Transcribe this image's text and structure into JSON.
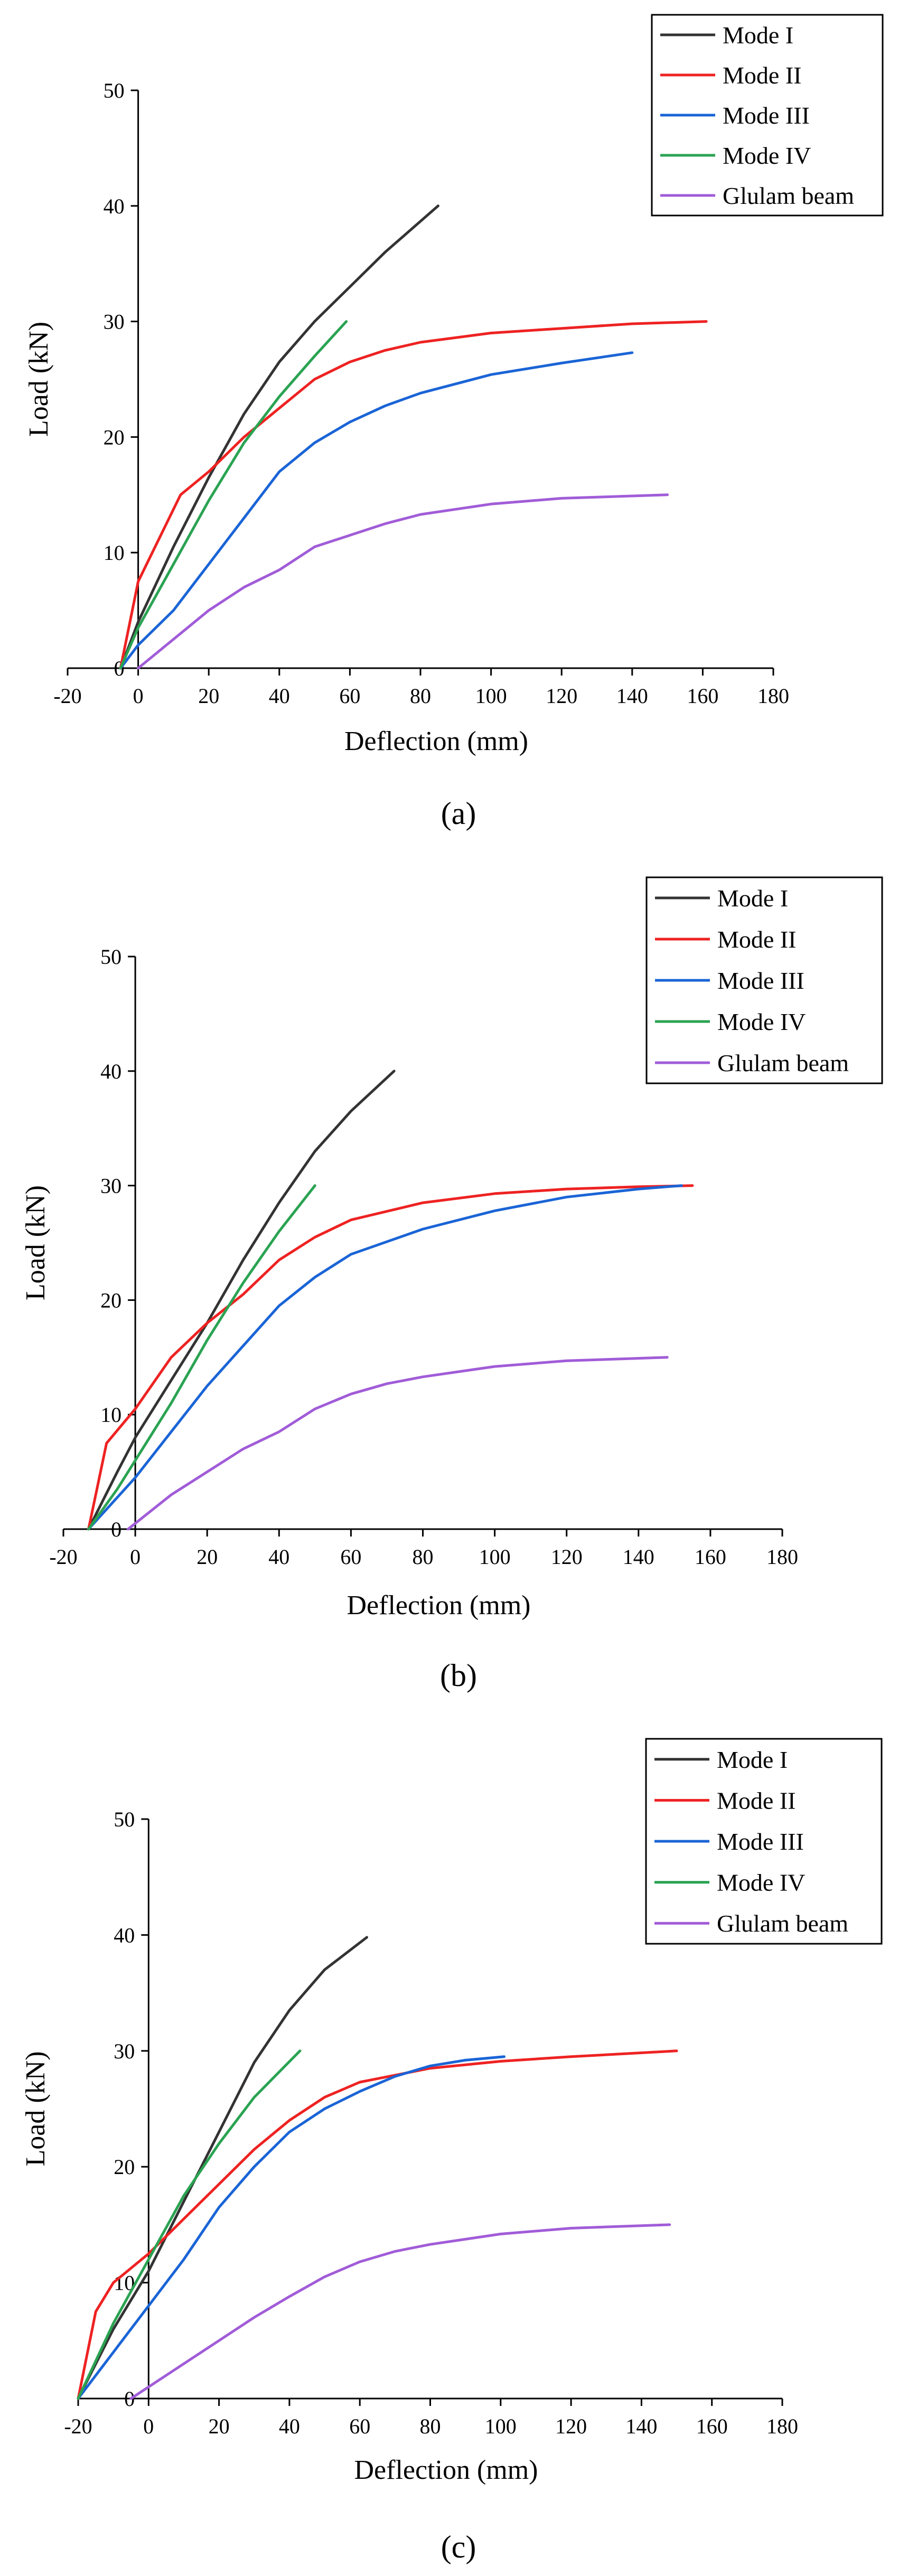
{
  "chart_data": [
    {
      "panel": "a",
      "type": "line",
      "caption": "(a)",
      "xlabel": "Deflection (mm)",
      "ylabel": "Load (kN)",
      "xlim": [
        -20,
        180
      ],
      "ylim": [
        0,
        50
      ],
      "xticks": [
        -20,
        0,
        20,
        40,
        60,
        80,
        100,
        120,
        140,
        160,
        180
      ],
      "yticks": [
        0,
        10,
        20,
        30,
        40,
        50
      ],
      "legend": "top-right",
      "series": [
        {
          "name": "Mode I",
          "color": "#333333",
          "points": [
            [
              -5,
              0
            ],
            [
              0,
              4
            ],
            [
              10,
              10.5
            ],
            [
              20,
              16.5
            ],
            [
              30,
              22
            ],
            [
              40,
              26.5
            ],
            [
              50,
              30
            ],
            [
              60,
              33
            ],
            [
              70,
              36
            ],
            [
              85,
              40
            ]
          ]
        },
        {
          "name": "Mode II",
          "color": "#ee2222",
          "points": [
            [
              -5,
              0
            ],
            [
              0,
              7.5
            ],
            [
              12,
              15
            ],
            [
              20,
              17
            ],
            [
              30,
              20
            ],
            [
              40,
              22.5
            ],
            [
              50,
              25
            ],
            [
              60,
              26.5
            ],
            [
              70,
              27.5
            ],
            [
              80,
              28.2
            ],
            [
              100,
              29
            ],
            [
              120,
              29.4
            ],
            [
              140,
              29.8
            ],
            [
              161,
              30
            ]
          ]
        },
        {
          "name": "Mode III",
          "color": "#1a64d6",
          "points": [
            [
              -5,
              0
            ],
            [
              0,
              2
            ],
            [
              10,
              5
            ],
            [
              20,
              9
            ],
            [
              30,
              13
            ],
            [
              40,
              17
            ],
            [
              50,
              19.5
            ],
            [
              60,
              21.3
            ],
            [
              70,
              22.7
            ],
            [
              80,
              23.8
            ],
            [
              100,
              25.4
            ],
            [
              120,
              26.4
            ],
            [
              140,
              27.3
            ]
          ]
        },
        {
          "name": "Mode IV",
          "color": "#2aa352",
          "points": [
            [
              -5,
              0
            ],
            [
              0,
              3.5
            ],
            [
              10,
              9
            ],
            [
              20,
              14.5
            ],
            [
              30,
              19.5
            ],
            [
              40,
              23.5
            ],
            [
              50,
              27
            ],
            [
              59,
              30
            ]
          ]
        },
        {
          "name": "Glulam beam",
          "color": "#a15cd8",
          "points": [
            [
              0,
              0
            ],
            [
              10,
              2.5
            ],
            [
              20,
              5
            ],
            [
              30,
              7
            ],
            [
              40,
              8.5
            ],
            [
              50,
              10.5
            ],
            [
              60,
              11.5
            ],
            [
              70,
              12.5
            ],
            [
              80,
              13.3
            ],
            [
              100,
              14.2
            ],
            [
              120,
              14.7
            ],
            [
              150,
              15
            ]
          ]
        }
      ]
    },
    {
      "panel": "b",
      "type": "line",
      "caption": "(b)",
      "xlabel": "Deflection (mm)",
      "ylabel": "Load (kN)",
      "xlim": [
        -20,
        180
      ],
      "ylim": [
        0,
        50
      ],
      "xticks": [
        -20,
        0,
        20,
        40,
        60,
        80,
        100,
        120,
        140,
        160,
        180
      ],
      "yticks": [
        0,
        10,
        20,
        30,
        40,
        50
      ],
      "legend": "top-right",
      "series": [
        {
          "name": "Mode I",
          "color": "#333333",
          "points": [
            [
              -13,
              0
            ],
            [
              -5,
              5
            ],
            [
              0,
              8
            ],
            [
              10,
              13
            ],
            [
              20,
              18
            ],
            [
              30,
              23.5
            ],
            [
              40,
              28.5
            ],
            [
              50,
              33
            ],
            [
              60,
              36.5
            ],
            [
              72,
              40
            ]
          ]
        },
        {
          "name": "Mode II",
          "color": "#ee2222",
          "points": [
            [
              -13,
              0
            ],
            [
              -8,
              7.5
            ],
            [
              0,
              10.5
            ],
            [
              10,
              15
            ],
            [
              20,
              18
            ],
            [
              30,
              20.5
            ],
            [
              40,
              23.5
            ],
            [
              50,
              25.5
            ],
            [
              60,
              27
            ],
            [
              80,
              28.5
            ],
            [
              100,
              29.3
            ],
            [
              120,
              29.7
            ],
            [
              140,
              29.9
            ],
            [
              155,
              30
            ]
          ]
        },
        {
          "name": "Mode III",
          "color": "#1a64d6",
          "points": [
            [
              -13,
              0
            ],
            [
              0,
              4.5
            ],
            [
              10,
              8.5
            ],
            [
              20,
              12.5
            ],
            [
              30,
              16
            ],
            [
              40,
              19.5
            ],
            [
              50,
              22
            ],
            [
              60,
              24
            ],
            [
              80,
              26.2
            ],
            [
              100,
              27.8
            ],
            [
              120,
              29
            ],
            [
              140,
              29.7
            ],
            [
              152,
              30
            ]
          ]
        },
        {
          "name": "Mode IV",
          "color": "#2aa352",
          "points": [
            [
              -13,
              0
            ],
            [
              -5,
              3.5
            ],
            [
              0,
              6
            ],
            [
              10,
              11
            ],
            [
              20,
              16.5
            ],
            [
              30,
              21.5
            ],
            [
              40,
              26
            ],
            [
              50,
              30
            ]
          ]
        },
        {
          "name": "Glulam beam",
          "color": "#a15cd8",
          "points": [
            [
              -2,
              0
            ],
            [
              10,
              3
            ],
            [
              20,
              5
            ],
            [
              30,
              7
            ],
            [
              40,
              8.5
            ],
            [
              50,
              10.5
            ],
            [
              60,
              11.8
            ],
            [
              70,
              12.7
            ],
            [
              80,
              13.3
            ],
            [
              100,
              14.2
            ],
            [
              120,
              14.7
            ],
            [
              148,
              15
            ]
          ]
        }
      ]
    },
    {
      "panel": "c",
      "type": "line",
      "caption": "(c)",
      "xlabel": "Deflection (mm)",
      "ylabel": "Load (kN)",
      "xlim": [
        -20,
        180
      ],
      "ylim": [
        0,
        50
      ],
      "xticks": [
        -20,
        0,
        20,
        40,
        60,
        80,
        100,
        120,
        140,
        160,
        180
      ],
      "yticks": [
        0,
        10,
        20,
        30,
        40,
        50
      ],
      "legend": "top-right",
      "series": [
        {
          "name": "Mode I",
          "color": "#333333",
          "points": [
            [
              -20,
              0
            ],
            [
              -10,
              6
            ],
            [
              0,
              11
            ],
            [
              10,
              17
            ],
            [
              20,
              23
            ],
            [
              30,
              29
            ],
            [
              40,
              33.5
            ],
            [
              50,
              37
            ],
            [
              62,
              39.8
            ]
          ]
        },
        {
          "name": "Mode II",
          "color": "#ee2222",
          "points": [
            [
              -20,
              0
            ],
            [
              -15,
              7.5
            ],
            [
              -10,
              10
            ],
            [
              0,
              12.5
            ],
            [
              10,
              15.5
            ],
            [
              20,
              18.5
            ],
            [
              30,
              21.5
            ],
            [
              40,
              24
            ],
            [
              50,
              26
            ],
            [
              60,
              27.3
            ],
            [
              80,
              28.5
            ],
            [
              100,
              29.1
            ],
            [
              120,
              29.5
            ],
            [
              150,
              30
            ]
          ]
        },
        {
          "name": "Mode III",
          "color": "#1a64d6",
          "points": [
            [
              -20,
              0
            ],
            [
              -10,
              4
            ],
            [
              0,
              8
            ],
            [
              10,
              12
            ],
            [
              20,
              16.5
            ],
            [
              30,
              20
            ],
            [
              40,
              23
            ],
            [
              50,
              25
            ],
            [
              60,
              26.5
            ],
            [
              70,
              27.8
            ],
            [
              80,
              28.7
            ],
            [
              90,
              29.2
            ],
            [
              101,
              29.5
            ]
          ]
        },
        {
          "name": "Mode IV",
          "color": "#2aa352",
          "points": [
            [
              -20,
              0
            ],
            [
              -10,
              6.5
            ],
            [
              0,
              12
            ],
            [
              10,
              17.5
            ],
            [
              20,
              22
            ],
            [
              30,
              26
            ],
            [
              43,
              30
            ]
          ]
        },
        {
          "name": "Glulam beam",
          "color": "#a15cd8",
          "points": [
            [
              -5,
              0
            ],
            [
              10,
              3
            ],
            [
              20,
              5
            ],
            [
              30,
              7
            ],
            [
              40,
              8.8
            ],
            [
              50,
              10.5
            ],
            [
              60,
              11.8
            ],
            [
              70,
              12.7
            ],
            [
              80,
              13.3
            ],
            [
              100,
              14.2
            ],
            [
              120,
              14.7
            ],
            [
              148,
              15
            ]
          ]
        }
      ]
    }
  ]
}
